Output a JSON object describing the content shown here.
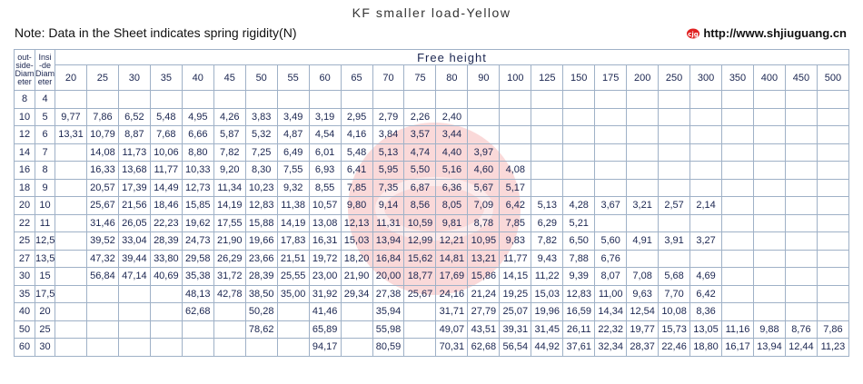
{
  "header": {
    "title": "KF smaller load-Yellow",
    "note": "Note: Data in the Sheet indicates spring rigidity(N)",
    "url": "http://www.shjiuguang.cn"
  },
  "table": {
    "col_headers": [
      [
        "out-",
        "side-",
        "Diam",
        "eter"
      ],
      [
        "Insi",
        "-de",
        "Diam",
        "eter"
      ]
    ],
    "group_header": "Free height",
    "heights": [
      "20",
      "25",
      "30",
      "35",
      "40",
      "45",
      "50",
      "55",
      "60",
      "65",
      "70",
      "75",
      "80",
      "90",
      "100",
      "125",
      "150",
      "175",
      "200",
      "250",
      "300",
      "350",
      "400",
      "450",
      "500"
    ],
    "rows": [
      [
        "8",
        "4",
        null,
        null,
        null,
        null,
        null,
        null,
        null,
        null,
        null,
        null,
        null,
        null,
        null,
        null,
        null,
        null,
        null,
        null,
        null,
        null,
        null,
        null,
        null,
        null,
        null
      ],
      [
        "10",
        "5",
        "9,77",
        "7,86",
        "6,52",
        "5,48",
        "4,95",
        "4,26",
        "3,83",
        "3,49",
        "3,19",
        "2,95",
        "2,79",
        "2,26",
        "2,40",
        null,
        null,
        null,
        null,
        null,
        null,
        null,
        null,
        null,
        null,
        null,
        null
      ],
      [
        "12",
        "6",
        "13,31",
        "10,79",
        "8,87",
        "7,68",
        "6,66",
        "5,87",
        "5,32",
        "4,87",
        "4,54",
        "4,16",
        "3,84",
        "3,57",
        "3,44",
        null,
        null,
        null,
        null,
        null,
        null,
        null,
        null,
        null,
        null,
        null,
        null
      ],
      [
        "14",
        "7",
        null,
        "14,08",
        "11,73",
        "10,06",
        "8,80",
        "7,82",
        "7,25",
        "6,49",
        "6,01",
        "5,48",
        "5,13",
        "4,74",
        "4,40",
        "3,97",
        null,
        null,
        null,
        null,
        null,
        null,
        null,
        null,
        null,
        null,
        null
      ],
      [
        "16",
        "8",
        null,
        "16,33",
        "13,68",
        "11,77",
        "10,33",
        "9,20",
        "8,30",
        "7,55",
        "6,93",
        "6,41",
        "5,95",
        "5,50",
        "5,16",
        "4,60",
        "4,08",
        null,
        null,
        null,
        null,
        null,
        null,
        null,
        null,
        null,
        null
      ],
      [
        "18",
        "9",
        null,
        "20,57",
        "17,39",
        "14,49",
        "12,73",
        "11,34",
        "10,23",
        "9,32",
        "8,55",
        "7,85",
        "7,35",
        "6,87",
        "6,36",
        "5,67",
        "5,17",
        null,
        null,
        null,
        null,
        null,
        null,
        null,
        null,
        null,
        null
      ],
      [
        "20",
        "10",
        null,
        "25,67",
        "21,56",
        "18,46",
        "15,85",
        "14,19",
        "12,83",
        "11,38",
        "10,57",
        "9,80",
        "9,14",
        "8,56",
        "8,05",
        "7,09",
        "6,42",
        "5,13",
        "4,28",
        "3,67",
        "3,21",
        "2,57",
        "2,14",
        null,
        null,
        null,
        null
      ],
      [
        "22",
        "11",
        null,
        "31,46",
        "26,05",
        "22,23",
        "19,62",
        "17,55",
        "15,88",
        "14,19",
        "13,08",
        "12,13",
        "11,31",
        "10,59",
        "9,81",
        "8,78",
        "7,85",
        "6,29",
        "5,21",
        null,
        null,
        null,
        null,
        null,
        null,
        null,
        null
      ],
      [
        "25",
        "12,5",
        null,
        "39,52",
        "33,04",
        "28,39",
        "24,73",
        "21,90",
        "19,66",
        "17,83",
        "16,31",
        "15,03",
        "13,94",
        "12,99",
        "12,21",
        "10,95",
        "9,83",
        "7,82",
        "6,50",
        "5,60",
        "4,91",
        "3,91",
        "3,27",
        null,
        null,
        null,
        null
      ],
      [
        "27",
        "13,5",
        null,
        "47,32",
        "39,44",
        "33,80",
        "29,58",
        "26,29",
        "23,66",
        "21,51",
        "19,72",
        "18,20",
        "16,84",
        "15,62",
        "14,81",
        "13,21",
        "11,77",
        "9,43",
        "7,88",
        "6,76",
        null,
        null,
        null,
        null,
        null,
        null,
        null
      ],
      [
        "30",
        "15",
        null,
        "56,84",
        "47,14",
        "40,69",
        "35,38",
        "31,72",
        "28,39",
        "25,55",
        "23,00",
        "21,90",
        "20,00",
        "18,77",
        "17,69",
        "15,86",
        "14,15",
        "11,22",
        "9,39",
        "8,07",
        "7,08",
        "5,68",
        "4,69",
        null,
        null,
        null,
        null
      ],
      [
        "35",
        "17,5",
        null,
        null,
        null,
        null,
        "48,13",
        "42,78",
        "38,50",
        "35,00",
        "31,92",
        "29,34",
        "27,38",
        "25,67",
        "24,16",
        "21,24",
        "19,25",
        "15,03",
        "12,83",
        "11,00",
        "9,63",
        "7,70",
        "6,42",
        null,
        null,
        null,
        null
      ],
      [
        "40",
        "20",
        null,
        null,
        null,
        null,
        "62,68",
        null,
        "50,28",
        null,
        "41,46",
        null,
        "35,94",
        null,
        "31,71",
        "27,79",
        "25,07",
        "19,96",
        "16,59",
        "14,34",
        "12,54",
        "10,08",
        "8,36",
        null,
        null,
        null,
        null
      ],
      [
        "50",
        "25",
        null,
        null,
        null,
        null,
        null,
        null,
        "78,62",
        null,
        "65,89",
        null,
        "55,98",
        null,
        "49,07",
        "43,51",
        "39,31",
        "31,45",
        "26,11",
        "22,32",
        "19,77",
        "15,73",
        "13,05",
        "11,16",
        "9,88",
        "8,76",
        "7,86"
      ],
      [
        "60",
        "30",
        null,
        null,
        null,
        null,
        null,
        null,
        null,
        null,
        "94,17",
        null,
        "80,59",
        null,
        "70,31",
        "62,68",
        "56,54",
        "44,92",
        "37,61",
        "32,34",
        "28,37",
        "22,46",
        "18,80",
        "16,17",
        "13,94",
        "12,44",
        "11,23"
      ]
    ]
  }
}
